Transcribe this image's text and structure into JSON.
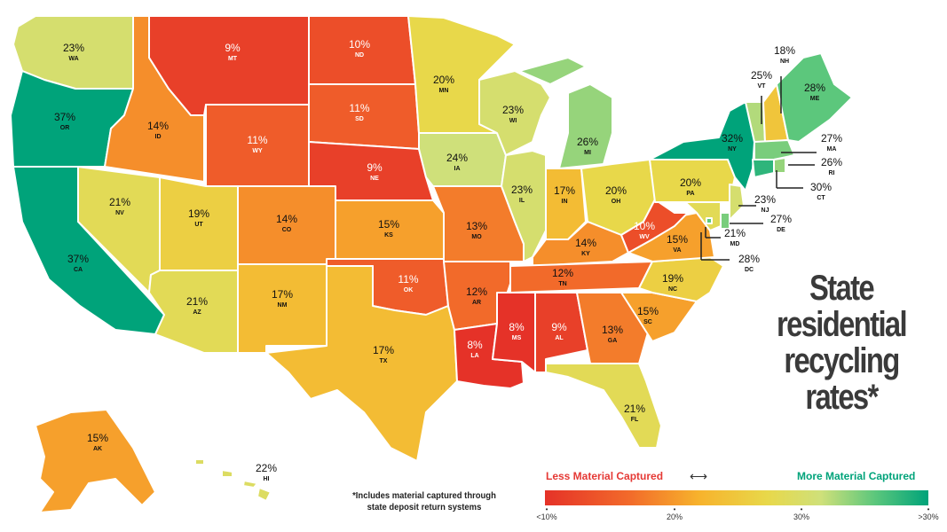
{
  "title": "State residential recycling rates*",
  "footnote": "*Includes material captured through state deposit return systems",
  "legend": {
    "less_label": "Less Material Captured",
    "more_label": "More Material Captured",
    "arrow": "⟷",
    "ticks": [
      "<10%",
      "20%",
      "30%",
      ">30%"
    ],
    "colors": [
      "#e53228",
      "#f26a2a",
      "#f7b22c",
      "#e8d84a",
      "#cfe07a",
      "#5cc77c",
      "#00a37a"
    ]
  },
  "states": [
    {
      "abbr": "WA",
      "rate": 23
    },
    {
      "abbr": "OR",
      "rate": 37
    },
    {
      "abbr": "CA",
      "rate": 37
    },
    {
      "abbr": "ID",
      "rate": 14
    },
    {
      "abbr": "NV",
      "rate": 21
    },
    {
      "abbr": "MT",
      "rate": 9
    },
    {
      "abbr": "WY",
      "rate": 11
    },
    {
      "abbr": "UT",
      "rate": 19
    },
    {
      "abbr": "AZ",
      "rate": 21
    },
    {
      "abbr": "CO",
      "rate": 14
    },
    {
      "abbr": "NM",
      "rate": 17
    },
    {
      "abbr": "ND",
      "rate": 10
    },
    {
      "abbr": "SD",
      "rate": 11
    },
    {
      "abbr": "NE",
      "rate": 9
    },
    {
      "abbr": "KS",
      "rate": 15
    },
    {
      "abbr": "OK",
      "rate": 11
    },
    {
      "abbr": "TX",
      "rate": 17
    },
    {
      "abbr": "MN",
      "rate": 20
    },
    {
      "abbr": "IA",
      "rate": 24
    },
    {
      "abbr": "MO",
      "rate": 13
    },
    {
      "abbr": "AR",
      "rate": 12
    },
    {
      "abbr": "LA",
      "rate": 8
    },
    {
      "abbr": "WI",
      "rate": 23
    },
    {
      "abbr": "IL",
      "rate": 23
    },
    {
      "abbr": "MI",
      "rate": 26
    },
    {
      "abbr": "IN",
      "rate": 17
    },
    {
      "abbr": "OH",
      "rate": 20
    },
    {
      "abbr": "KY",
      "rate": 14
    },
    {
      "abbr": "TN",
      "rate": 12
    },
    {
      "abbr": "MS",
      "rate": 8
    },
    {
      "abbr": "AL",
      "rate": 9
    },
    {
      "abbr": "GA",
      "rate": 13
    },
    {
      "abbr": "FL",
      "rate": 21
    },
    {
      "abbr": "SC",
      "rate": 15
    },
    {
      "abbr": "NC",
      "rate": 19
    },
    {
      "abbr": "VA",
      "rate": 15
    },
    {
      "abbr": "WV",
      "rate": 10
    },
    {
      "abbr": "PA",
      "rate": 20
    },
    {
      "abbr": "NY",
      "rate": 32
    },
    {
      "abbr": "VT",
      "rate": 25
    },
    {
      "abbr": "NH",
      "rate": 18
    },
    {
      "abbr": "ME",
      "rate": 28
    },
    {
      "abbr": "MA",
      "rate": 27
    },
    {
      "abbr": "RI",
      "rate": 26
    },
    {
      "abbr": "CT",
      "rate": 30
    },
    {
      "abbr": "NJ",
      "rate": 23
    },
    {
      "abbr": "DE",
      "rate": 27
    },
    {
      "abbr": "MD",
      "rate": 21
    },
    {
      "abbr": "DC",
      "rate": 28
    },
    {
      "abbr": "AK",
      "rate": 15
    },
    {
      "abbr": "HI",
      "rate": 22
    }
  ]
}
